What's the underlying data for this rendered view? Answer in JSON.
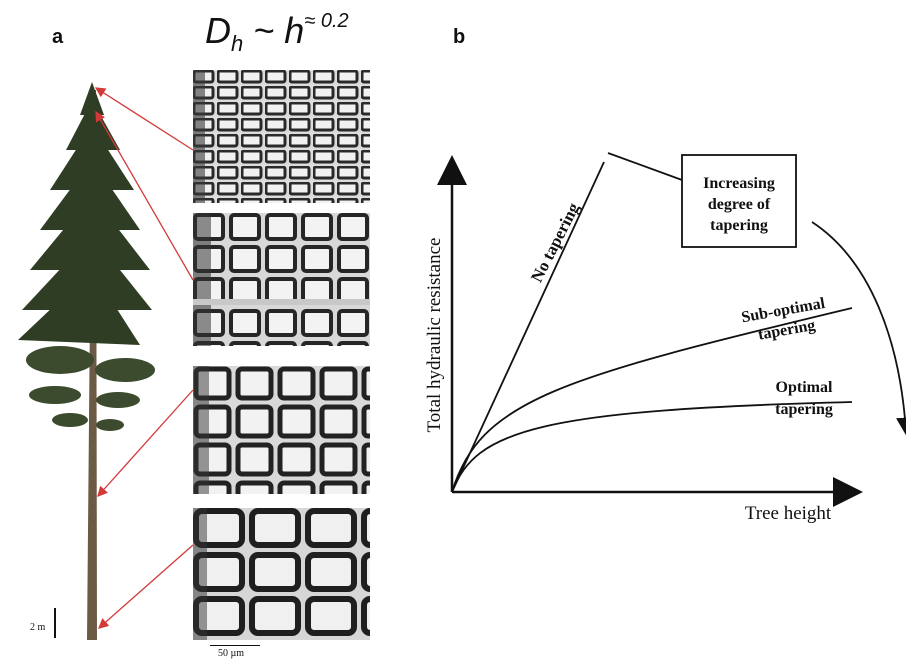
{
  "panel_a": {
    "label": "a",
    "formula": {
      "base": "D",
      "sub": "h",
      "rest": " ~ h",
      "sup": "≈ 0.2"
    },
    "tree_scale": "2 m",
    "micro_scale": "50 µm",
    "micrographs": [
      {
        "position": "top",
        "cell_scale": "smallest"
      },
      {
        "position": "upper-middle",
        "cell_scale": "small"
      },
      {
        "position": "lower-middle",
        "cell_scale": "medium"
      },
      {
        "position": "bottom",
        "cell_scale": "largest"
      }
    ]
  },
  "panel_b": {
    "label": "b",
    "chart_data": {
      "type": "line",
      "xlabel": "Tree height",
      "ylabel": "Total hydraulic resistance",
      "series": [
        {
          "name": "No tapering"
        },
        {
          "name": "Sub-optimal tapering"
        },
        {
          "name": "Optimal tapering"
        }
      ],
      "annotation": "Increasing degree of tapering"
    }
  }
}
